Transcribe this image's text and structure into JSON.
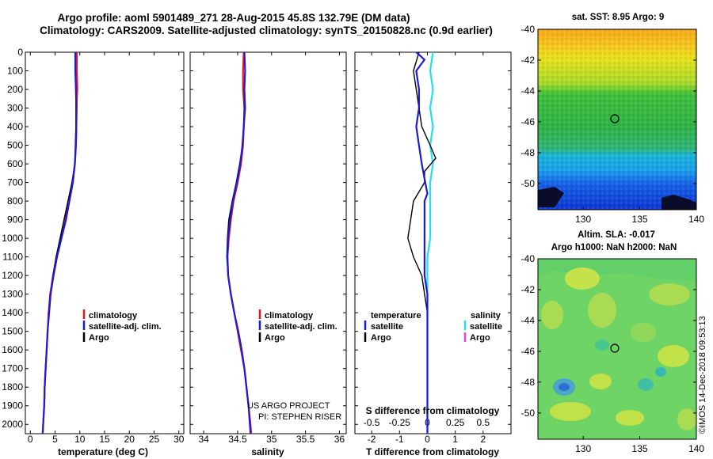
{
  "title_line1": "Argo profile: aoml 5901489_271 28-Aug-2015 45.8S 132.79E (DM data)",
  "title_line2": "Climatology: CARS2009. Satellite-adjusted climatology: synTS_20150828.nc (0.9d earlier)",
  "credit": {
    "line1": "US ARGO PROJECT",
    "line2": "PI: STEPHEN RISER"
  },
  "timestamp": "©IMOS 14-Dec-2018 09:53:13",
  "colors": {
    "climatology": "#e8161b",
    "satellite": "#1a1adc",
    "argo": "#000000",
    "sal_sat": "#22e0e8",
    "sal_argo": "#e845e0"
  },
  "chart_data": [
    {
      "type": "line",
      "id": "temperature",
      "xlabel": "temperature (deg C)",
      "xlim": [
        -1,
        31
      ],
      "xticks": [
        0,
        5,
        10,
        15,
        20,
        25,
        30
      ],
      "ylim": [
        0,
        2050
      ],
      "yticks": [
        0,
        100,
        200,
        300,
        400,
        500,
        600,
        700,
        800,
        900,
        1000,
        1100,
        1200,
        1300,
        1400,
        1500,
        1600,
        1700,
        1800,
        1900,
        2000
      ],
      "legend": {
        "entries": [
          "climatology",
          "satellite-adj. clim.",
          "Argo"
        ]
      },
      "series": [
        {
          "name": "climatology",
          "color": "#e8161b",
          "points": [
            [
              9.4,
              0
            ],
            [
              9.4,
              100
            ],
            [
              9.5,
              200
            ],
            [
              9.4,
              250
            ],
            [
              9.3,
              400
            ],
            [
              9.2,
              500
            ],
            [
              9.0,
              600
            ],
            [
              8.5,
              700
            ],
            [
              7.8,
              800
            ],
            [
              7.0,
              900
            ],
            [
              6.2,
              1000
            ],
            [
              5.3,
              1100
            ],
            [
              4.6,
              1200
            ],
            [
              4.0,
              1300
            ],
            [
              3.7,
              1400
            ],
            [
              3.5,
              1500
            ],
            [
              3.3,
              1600
            ],
            [
              3.1,
              1700
            ],
            [
              2.9,
              1800
            ],
            [
              2.8,
              1900
            ],
            [
              2.6,
              2000
            ],
            [
              2.5,
              2050
            ]
          ]
        },
        {
          "name": "satellite-adj. clim.",
          "color": "#1a1adc",
          "points": [
            [
              9.1,
              0
            ],
            [
              9.1,
              100
            ],
            [
              9.2,
              200
            ],
            [
              9.3,
              300
            ],
            [
              9.3,
              400
            ],
            [
              9.2,
              500
            ],
            [
              9.0,
              600
            ],
            [
              8.6,
              700
            ],
            [
              7.9,
              800
            ],
            [
              7.2,
              900
            ],
            [
              6.3,
              1000
            ],
            [
              5.4,
              1100
            ],
            [
              4.7,
              1200
            ],
            [
              4.1,
              1300
            ],
            [
              3.8,
              1400
            ],
            [
              3.5,
              1500
            ],
            [
              3.3,
              1600
            ],
            [
              3.1,
              1700
            ],
            [
              2.9,
              1800
            ],
            [
              2.8,
              1900
            ],
            [
              2.6,
              2000
            ],
            [
              2.5,
              2050
            ]
          ]
        },
        {
          "name": "Argo",
          "color": "#000000",
          "points": [
            [
              9.1,
              0
            ],
            [
              9.1,
              100
            ],
            [
              9.2,
              200
            ],
            [
              9.2,
              300
            ],
            [
              9.2,
              400
            ],
            [
              9.1,
              500
            ],
            [
              9.0,
              600
            ],
            [
              8.4,
              700
            ],
            [
              7.6,
              800
            ],
            [
              6.8,
              900
            ],
            [
              6.0,
              1000
            ],
            [
              5.2,
              1100
            ],
            [
              4.6,
              1200
            ],
            [
              4.1,
              1300
            ],
            [
              3.7,
              1400
            ],
            [
              3.5,
              1500
            ],
            [
              3.3,
              1600
            ],
            [
              3.1,
              1700
            ],
            [
              2.9,
              1800
            ],
            [
              2.8,
              1900
            ],
            [
              2.6,
              2000
            ],
            [
              2.5,
              2050
            ]
          ]
        }
      ]
    },
    {
      "type": "line",
      "id": "salinity",
      "xlabel": "salinity",
      "xlim": [
        33.8,
        36.1
      ],
      "xticks": [
        34,
        34.5,
        35,
        35.5,
        36
      ],
      "xticklabels": [
        "34",
        "34.5",
        "35",
        "35.5",
        "36"
      ],
      "ylim": [
        0,
        2050
      ],
      "legend": {
        "entries": [
          "climatology",
          "satellite-adj. clim.",
          "Argo"
        ]
      },
      "series": [
        {
          "name": "climatology",
          "color": "#e8161b",
          "points": [
            [
              34.59,
              0
            ],
            [
              34.58,
              100
            ],
            [
              34.58,
              200
            ],
            [
              34.6,
              300
            ],
            [
              34.59,
              400
            ],
            [
              34.58,
              500
            ],
            [
              34.55,
              600
            ],
            [
              34.5,
              700
            ],
            [
              34.44,
              800
            ],
            [
              34.4,
              900
            ],
            [
              34.37,
              1000
            ],
            [
              34.35,
              1100
            ],
            [
              34.36,
              1200
            ],
            [
              34.4,
              1300
            ],
            [
              34.45,
              1400
            ],
            [
              34.5,
              1500
            ],
            [
              34.55,
              1600
            ],
            [
              34.6,
              1700
            ],
            [
              34.63,
              1800
            ],
            [
              34.66,
              1900
            ],
            [
              34.69,
              2000
            ],
            [
              34.7,
              2050
            ]
          ]
        },
        {
          "name": "satellite-adj. clim.",
          "color": "#1a1adc",
          "points": [
            [
              34.6,
              0
            ],
            [
              34.61,
              100
            ],
            [
              34.6,
              200
            ],
            [
              34.61,
              300
            ],
            [
              34.59,
              400
            ],
            [
              34.57,
              500
            ],
            [
              34.54,
              600
            ],
            [
              34.49,
              700
            ],
            [
              34.43,
              800
            ],
            [
              34.39,
              900
            ],
            [
              34.36,
              1000
            ],
            [
              34.35,
              1100
            ],
            [
              34.36,
              1200
            ],
            [
              34.4,
              1300
            ],
            [
              34.45,
              1400
            ],
            [
              34.51,
              1500
            ],
            [
              34.56,
              1600
            ],
            [
              34.6,
              1700
            ],
            [
              34.63,
              1800
            ],
            [
              34.66,
              1900
            ],
            [
              34.68,
              2000
            ],
            [
              34.69,
              2050
            ]
          ]
        },
        {
          "name": "Argo",
          "color": "#000000",
          "points": [
            [
              34.6,
              0
            ],
            [
              34.61,
              100
            ],
            [
              34.6,
              200
            ],
            [
              34.6,
              300
            ],
            [
              34.59,
              400
            ],
            [
              34.57,
              500
            ],
            [
              34.53,
              600
            ],
            [
              34.48,
              700
            ],
            [
              34.42,
              800
            ],
            [
              34.37,
              900
            ],
            [
              34.35,
              1000
            ],
            [
              34.34,
              1100
            ],
            [
              34.36,
              1200
            ],
            [
              34.4,
              1300
            ],
            [
              34.45,
              1400
            ],
            [
              34.51,
              1500
            ],
            [
              34.56,
              1600
            ],
            [
              34.6,
              1700
            ],
            [
              34.63,
              1800
            ],
            [
              34.66,
              1900
            ],
            [
              34.68,
              2000
            ],
            [
              34.69,
              2050
            ]
          ]
        }
      ]
    },
    {
      "type": "line",
      "id": "difference",
      "xlabel": "T difference from climatology",
      "xlim": [
        -2.6,
        3.0
      ],
      "xticks": [
        -2,
        -1,
        0,
        1,
        2
      ],
      "top_xlabel": "S difference from climatology",
      "top_xticklabels": [
        "-0.5",
        "-0.25",
        "0",
        "0.25",
        "0.5"
      ],
      "top_xticks_at": [
        -2,
        -1,
        0,
        1,
        2
      ],
      "ylim": [
        0,
        2050
      ],
      "legend": {
        "left_header": "temperature",
        "right_header": "salinity",
        "left_entries": [
          "satellite",
          "Argo"
        ],
        "right_entries": [
          "satellite",
          "Argo"
        ]
      },
      "series": [
        {
          "name": "T satellite",
          "color": "#1a1adc",
          "points": [
            [
              -0.4,
              0
            ],
            [
              -0.1,
              40
            ],
            [
              -0.4,
              100
            ],
            [
              -0.3,
              200
            ],
            [
              -0.3,
              300
            ],
            [
              -0.4,
              400
            ],
            [
              -0.3,
              500
            ],
            [
              -0.2,
              600
            ],
            [
              -0.1,
              680
            ],
            [
              0.0,
              760
            ],
            [
              -0.1,
              800
            ],
            [
              -0.1,
              900
            ],
            [
              -0.1,
              1000
            ],
            [
              -0.1,
              1100
            ],
            [
              -0.1,
              1200
            ],
            [
              0.0,
              1300
            ],
            [
              0.0,
              1400
            ],
            [
              0.0,
              1500
            ],
            [
              0.0,
              1600
            ],
            [
              0.0,
              1700
            ],
            [
              0.0,
              1800
            ],
            [
              0.0,
              1900
            ],
            [
              0.0,
              2050
            ]
          ]
        },
        {
          "name": "T Argo",
          "color": "#000000",
          "points": [
            [
              -0.3,
              0
            ],
            [
              -0.5,
              100
            ],
            [
              -0.4,
              200
            ],
            [
              -0.3,
              300
            ],
            [
              -0.2,
              400
            ],
            [
              0.1,
              500
            ],
            [
              0.3,
              570
            ],
            [
              -0.1,
              640
            ],
            [
              -0.1,
              700
            ],
            [
              -0.5,
              800
            ],
            [
              -0.6,
              900
            ],
            [
              -0.7,
              1000
            ],
            [
              -0.5,
              1100
            ],
            [
              -0.2,
              1200
            ],
            [
              -0.1,
              1300
            ],
            [
              0.0,
              1400
            ],
            [
              0.0,
              1500
            ],
            [
              0.0,
              1600
            ],
            [
              0.0,
              1700
            ],
            [
              0.0,
              1800
            ],
            [
              0.0,
              1900
            ],
            [
              0.0,
              2050
            ]
          ]
        },
        {
          "name": "S satellite",
          "color": "#22e0e8",
          "points": [
            [
              0.2,
              0
            ],
            [
              0.1,
              100
            ],
            [
              0.2,
              200
            ],
            [
              0.1,
              300
            ],
            [
              0.2,
              400
            ],
            [
              0.1,
              500
            ],
            [
              0.2,
              600
            ],
            [
              0.1,
              700
            ],
            [
              0.1,
              800
            ],
            [
              0.1,
              900
            ],
            [
              0.1,
              1000
            ],
            [
              0.0,
              1100
            ],
            [
              0.0,
              1200
            ],
            [
              0.0,
              1300
            ],
            [
              0.0,
              1400
            ],
            [
              0.0,
              1500
            ],
            [
              0.0,
              1600
            ],
            [
              0.0,
              1700
            ],
            [
              0.0,
              1800
            ],
            [
              0.0,
              1900
            ],
            [
              0.0,
              2050
            ]
          ]
        }
      ]
    },
    {
      "type": "heatmap",
      "id": "sst_map",
      "title": "sat. SST: 8.95 Argo: 9",
      "xlim": [
        126,
        140
      ],
      "ylim": [
        -51.7,
        -40
      ],
      "xticks": [
        130,
        135,
        140
      ],
      "yticks": [
        -40,
        -42,
        -44,
        -46,
        -48,
        -50
      ],
      "marker": {
        "lon": 132.79,
        "lat": -45.8
      }
    },
    {
      "type": "heatmap",
      "id": "sla_map",
      "title_line1": "Altim. SLA: -0.017",
      "title_line2": "Argo h1000: NaN h2000: NaN",
      "xlim": [
        126,
        140
      ],
      "ylim": [
        -51.7,
        -40
      ],
      "xticks": [
        130,
        135,
        140
      ],
      "yticks": [
        -40,
        -42,
        -44,
        -46,
        -48,
        -50
      ],
      "marker": {
        "lon": 132.79,
        "lat": -45.8
      }
    }
  ]
}
